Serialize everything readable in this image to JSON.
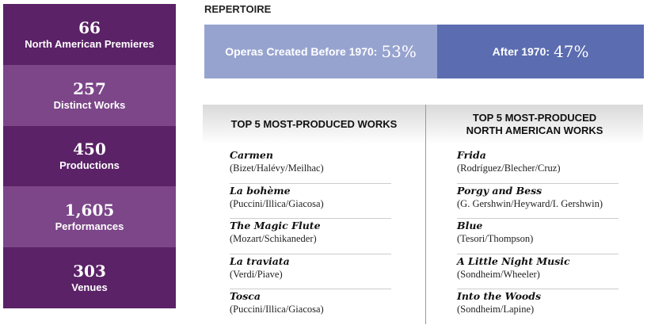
{
  "stats": [
    {
      "value": "66",
      "label": "North American Premieres"
    },
    {
      "value": "257",
      "label": "Distinct Works"
    },
    {
      "value": "450",
      "label": "Productions"
    },
    {
      "value": "1,605",
      "label": "Performances"
    },
    {
      "value": "303",
      "label": "Venues"
    }
  ],
  "repertoire": {
    "title": "REPERTOIRE",
    "before": {
      "label": "Operas Created Before 1970:",
      "value": "53%",
      "percent": 53
    },
    "after": {
      "label": "After 1970:",
      "value": "47%",
      "percent": 47
    },
    "colors": {
      "before": "#97a3cf",
      "after": "#5b6cb0"
    }
  },
  "top_works": {
    "title": "TOP 5 MOST-PRODUCED WORKS",
    "items": [
      {
        "title": "Carmen",
        "authors": "(Bizet/Halévy/Meilhac)"
      },
      {
        "title": "La bohème",
        "authors": "(Puccini/Illica/Giacosa)"
      },
      {
        "title": "The Magic Flute",
        "authors": "(Mozart/Schikaneder)"
      },
      {
        "title": "La traviata",
        "authors": "(Verdi/Piave)"
      },
      {
        "title": "Tosca",
        "authors": "(Puccini/Illica/Giacosa)"
      }
    ]
  },
  "top_na_works": {
    "title_line1": "TOP 5 MOST-PRODUCED",
    "title_line2": "NORTH AMERICAN WORKS",
    "items": [
      {
        "title": "Frida",
        "authors": "(Rodríguez/Blecher/Cruz)"
      },
      {
        "title": "Porgy and Bess",
        "authors": "(G. Gershwin/Heyward/I. Gershwin)"
      },
      {
        "title": "Blue",
        "authors": "(Tesori/Thompson)"
      },
      {
        "title": "A Little Night Music",
        "authors": "(Sondheim/Wheeler)"
      },
      {
        "title": "Into the Woods",
        "authors": "(Sondheim/Lapine)"
      }
    ]
  }
}
